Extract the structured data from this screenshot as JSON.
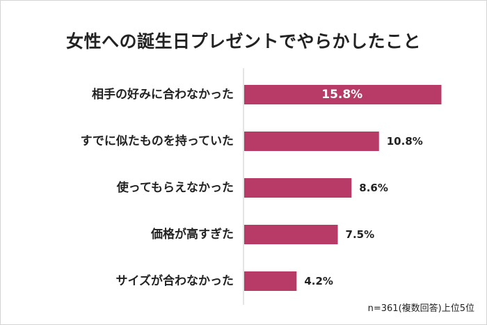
{
  "chart_data": {
    "type": "bar",
    "orientation": "horizontal",
    "title": "女性への誕生日プレゼントでやらかしたこと",
    "categories": [
      "相手の好みに合わなかった",
      "すでに似たものを持っていた",
      "使ってもらえなかった",
      "価格が高すぎた",
      "サイズが合わなかった"
    ],
    "values": [
      15.8,
      10.8,
      8.6,
      7.5,
      4.2
    ],
    "data_labels": [
      "15.8%",
      "10.8%",
      "8.6%",
      "7.5%",
      "4.2%"
    ],
    "xlim": [
      0,
      17
    ],
    "grid": false,
    "bar_color": "#b83a66",
    "footnote": "n=361(複数回答)上位5位"
  }
}
